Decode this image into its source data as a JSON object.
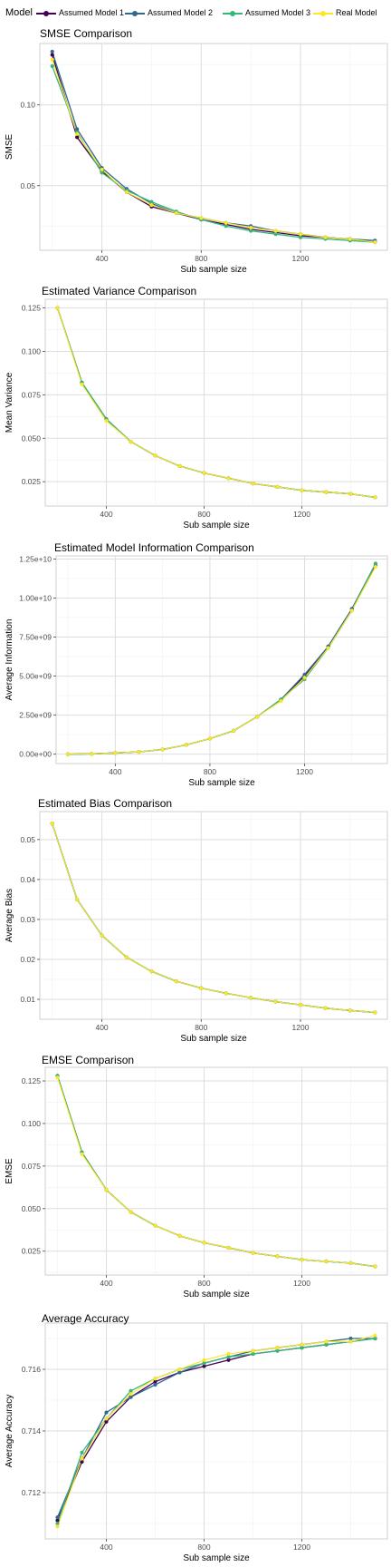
{
  "legend": {
    "title": "Model",
    "items": [
      {
        "label": "Assumed Model 1",
        "color": "#440154"
      },
      {
        "label": "Assumed Model 2",
        "color": "#31688e"
      },
      {
        "label": "Assumed Model 3",
        "color": "#35b779"
      },
      {
        "label": "Real Model",
        "color": "#fde725"
      }
    ]
  },
  "chart_data": [
    {
      "type": "line",
      "title": "SMSE Comparison",
      "xlabel": "Sub sample size",
      "ylabel": "SMSE",
      "x": [
        200,
        300,
        400,
        500,
        600,
        700,
        800,
        900,
        1000,
        1100,
        1200,
        1300,
        1400,
        1500
      ],
      "xticks": [
        400,
        800,
        1200
      ],
      "xtick_labels": [
        "400",
        "800",
        "1200"
      ],
      "xlim": [
        150,
        1550
      ],
      "yticks": [
        0.05,
        0.1
      ],
      "ytick_labels": [
        "0.05",
        "0.10"
      ],
      "ylim": [
        0.01,
        0.138
      ],
      "grid": true,
      "series": [
        {
          "name": "Assumed Model 1",
          "color": "#440154",
          "values": [
            0.131,
            0.08,
            0.059,
            0.046,
            0.037,
            0.033,
            0.029,
            0.026,
            0.023,
            0.021,
            0.019,
            0.018,
            0.017,
            0.015
          ]
        },
        {
          "name": "Assumed Model 2",
          "color": "#31688e",
          "values": [
            0.133,
            0.085,
            0.061,
            0.048,
            0.039,
            0.033,
            0.03,
            0.027,
            0.025,
            0.022,
            0.02,
            0.018,
            0.017,
            0.016
          ]
        },
        {
          "name": "Assumed Model 3",
          "color": "#35b779",
          "values": [
            0.124,
            0.083,
            0.058,
            0.047,
            0.04,
            0.034,
            0.029,
            0.025,
            0.022,
            0.02,
            0.018,
            0.017,
            0.016,
            0.015
          ]
        },
        {
          "name": "Real Model",
          "color": "#fde725",
          "values": [
            0.128,
            0.082,
            0.06,
            0.046,
            0.038,
            0.033,
            0.03,
            0.027,
            0.024,
            0.022,
            0.02,
            0.018,
            0.017,
            0.015
          ]
        }
      ]
    },
    {
      "type": "line",
      "title": "Estimated Variance Comparison",
      "xlabel": "Sub sample size",
      "ylabel": "Mean Variance",
      "x": [
        200,
        300,
        400,
        500,
        600,
        700,
        800,
        900,
        1000,
        1100,
        1200,
        1300,
        1400,
        1500
      ],
      "xticks": [
        400,
        800,
        1200
      ],
      "xtick_labels": [
        "400",
        "800",
        "1200"
      ],
      "xlim": [
        150,
        1550
      ],
      "yticks": [
        0.025,
        0.05,
        0.075,
        0.1,
        0.125
      ],
      "ytick_labels": [
        "0.025",
        "0.050",
        "0.075",
        "0.100",
        "0.125"
      ],
      "ylim": [
        0.011,
        0.13
      ],
      "grid": true,
      "series": [
        {
          "name": "Assumed Model 1",
          "color": "#440154",
          "values": [
            0.125,
            0.082,
            0.061,
            0.048,
            0.04,
            0.034,
            0.03,
            0.027,
            0.024,
            0.022,
            0.02,
            0.019,
            0.018,
            0.016
          ]
        },
        {
          "name": "Assumed Model 2",
          "color": "#31688e",
          "values": [
            0.125,
            0.082,
            0.061,
            0.048,
            0.04,
            0.034,
            0.03,
            0.027,
            0.024,
            0.022,
            0.02,
            0.019,
            0.018,
            0.016
          ]
        },
        {
          "name": "Assumed Model 3",
          "color": "#35b779",
          "values": [
            0.125,
            0.082,
            0.061,
            0.048,
            0.04,
            0.034,
            0.03,
            0.027,
            0.024,
            0.022,
            0.02,
            0.019,
            0.018,
            0.016
          ]
        },
        {
          "name": "Real Model",
          "color": "#fde725",
          "values": [
            0.125,
            0.081,
            0.06,
            0.048,
            0.04,
            0.034,
            0.03,
            0.027,
            0.024,
            0.022,
            0.02,
            0.019,
            0.018,
            0.016
          ]
        }
      ]
    },
    {
      "type": "line",
      "title": "Estimated Model Information Comparison",
      "xlabel": "Sub sample size",
      "ylabel": "Average Information",
      "x": [
        200,
        300,
        400,
        500,
        600,
        700,
        800,
        900,
        1000,
        1100,
        1200,
        1300,
        1400,
        1500
      ],
      "xticks": [
        400,
        800,
        1200
      ],
      "xtick_labels": [
        "400",
        "800",
        "1200"
      ],
      "xlim": [
        150,
        1550
      ],
      "yticks": [
        0,
        2500000000,
        5000000000,
        7500000000,
        10000000000,
        12500000000
      ],
      "ytick_labels": [
        "0.00e+00",
        "2.50e+09",
        "5.00e+09",
        "7.50e+09",
        "1.00e+10",
        "1.25e+10"
      ],
      "ylim": [
        -600000000,
        12700000000
      ],
      "grid": true,
      "series": [
        {
          "name": "Assumed Model 1",
          "color": "#440154",
          "values": [
            0,
            20000000,
            80000000,
            150000000,
            300000000,
            600000000,
            1000000000,
            1500000000,
            2400000000,
            3500000000,
            5000000000,
            6900000000,
            9300000000,
            12100000000
          ]
        },
        {
          "name": "Assumed Model 2",
          "color": "#31688e",
          "values": [
            0,
            20000000,
            80000000,
            150000000,
            300000000,
            600000000,
            1000000000,
            1500000000,
            2400000000,
            3500000000,
            5100000000,
            6900000000,
            9300000000,
            12200000000
          ]
        },
        {
          "name": "Assumed Model 3",
          "color": "#35b779",
          "values": [
            0,
            20000000,
            80000000,
            150000000,
            300000000,
            600000000,
            1000000000,
            1500000000,
            2400000000,
            3500000000,
            4800000000,
            6800000000,
            9200000000,
            12200000000
          ]
        },
        {
          "name": "Real Model",
          "color": "#fde725",
          "values": [
            0,
            20000000,
            80000000,
            150000000,
            300000000,
            600000000,
            1000000000,
            1500000000,
            2400000000,
            3400000000,
            4900000000,
            6800000000,
            9200000000,
            12000000000
          ]
        }
      ]
    },
    {
      "type": "line",
      "title": "Estimated Bias Comparison",
      "xlabel": "Sub sample size",
      "ylabel": "Average Bias",
      "x": [
        200,
        300,
        400,
        500,
        600,
        700,
        800,
        900,
        1000,
        1100,
        1200,
        1300,
        1400,
        1500
      ],
      "xticks": [
        400,
        800,
        1200
      ],
      "xtick_labels": [
        "400",
        "800",
        "1200"
      ],
      "xlim": [
        150,
        1550
      ],
      "yticks": [
        0.01,
        0.02,
        0.03,
        0.04,
        0.05
      ],
      "ytick_labels": [
        "0.01",
        "0.02",
        "0.03",
        "0.04",
        "0.05"
      ],
      "ylim": [
        0.005,
        0.057
      ],
      "grid": true,
      "series": [
        {
          "name": "Assumed Model 1",
          "color": "#440154",
          "values": [
            0.054,
            0.035,
            0.026,
            0.0205,
            0.017,
            0.0145,
            0.0128,
            0.0115,
            0.0104,
            0.0094,
            0.0086,
            0.0078,
            0.0072,
            0.0067
          ]
        },
        {
          "name": "Assumed Model 2",
          "color": "#31688e",
          "values": [
            0.054,
            0.035,
            0.026,
            0.0205,
            0.017,
            0.0145,
            0.0128,
            0.0115,
            0.0104,
            0.0094,
            0.0086,
            0.0078,
            0.0072,
            0.0067
          ]
        },
        {
          "name": "Assumed Model 3",
          "color": "#35b779",
          "values": [
            0.054,
            0.035,
            0.026,
            0.0205,
            0.017,
            0.0145,
            0.0128,
            0.0115,
            0.0104,
            0.0094,
            0.0086,
            0.0078,
            0.0072,
            0.0067
          ]
        },
        {
          "name": "Real Model",
          "color": "#fde725",
          "values": [
            0.054,
            0.035,
            0.026,
            0.0205,
            0.017,
            0.0145,
            0.0128,
            0.0115,
            0.0104,
            0.0094,
            0.0086,
            0.0078,
            0.0072,
            0.0067
          ]
        }
      ]
    },
    {
      "type": "line",
      "title": "EMSE Comparison",
      "xlabel": "Sub sample size",
      "ylabel": "EMSE",
      "x": [
        200,
        300,
        400,
        500,
        600,
        700,
        800,
        900,
        1000,
        1100,
        1200,
        1300,
        1400,
        1500
      ],
      "xticks": [
        400,
        800,
        1200
      ],
      "xtick_labels": [
        "400",
        "800",
        "1200"
      ],
      "xlim": [
        150,
        1550
      ],
      "yticks": [
        0.025,
        0.05,
        0.075,
        0.1,
        0.125
      ],
      "ytick_labels": [
        "0.025",
        "0.050",
        "0.075",
        "0.100",
        "0.125"
      ],
      "ylim": [
        0.011,
        0.133
      ],
      "grid": true,
      "series": [
        {
          "name": "Assumed Model 1",
          "color": "#440154",
          "values": [
            0.128,
            0.083,
            0.061,
            0.048,
            0.04,
            0.034,
            0.03,
            0.027,
            0.024,
            0.022,
            0.02,
            0.019,
            0.018,
            0.016
          ]
        },
        {
          "name": "Assumed Model 2",
          "color": "#31688e",
          "values": [
            0.128,
            0.083,
            0.061,
            0.048,
            0.04,
            0.034,
            0.03,
            0.027,
            0.024,
            0.022,
            0.02,
            0.019,
            0.018,
            0.016
          ]
        },
        {
          "name": "Assumed Model 3",
          "color": "#35b779",
          "values": [
            0.128,
            0.083,
            0.061,
            0.048,
            0.04,
            0.034,
            0.03,
            0.027,
            0.024,
            0.022,
            0.02,
            0.019,
            0.018,
            0.016
          ]
        },
        {
          "name": "Real Model",
          "color": "#fde725",
          "values": [
            0.127,
            0.082,
            0.061,
            0.048,
            0.04,
            0.034,
            0.03,
            0.027,
            0.024,
            0.022,
            0.02,
            0.019,
            0.018,
            0.016
          ]
        }
      ]
    },
    {
      "type": "line",
      "title": "Average Accuracy",
      "xlabel": "Sub sample size",
      "ylabel": "Average Accuracy",
      "x": [
        200,
        300,
        400,
        500,
        600,
        700,
        800,
        900,
        1000,
        1100,
        1200,
        1300,
        1400,
        1500
      ],
      "xticks": [
        400,
        800,
        1200
      ],
      "xtick_labels": [
        "400",
        "800",
        "1200"
      ],
      "xlim": [
        150,
        1550
      ],
      "yticks": [
        0.712,
        0.714,
        0.716
      ],
      "ytick_labels": [
        "0.712",
        "0.714",
        "0.716"
      ],
      "ylim": [
        0.7105,
        0.7175
      ],
      "grid": true,
      "series": [
        {
          "name": "Assumed Model 1",
          "color": "#440154",
          "values": [
            0.7111,
            0.713,
            0.7143,
            0.7151,
            0.7156,
            0.7159,
            0.7161,
            0.7163,
            0.7165,
            0.7166,
            0.7167,
            0.7168,
            0.7169,
            0.717
          ]
        },
        {
          "name": "Assumed Model 2",
          "color": "#31688e",
          "values": [
            0.7112,
            0.7131,
            0.7146,
            0.7151,
            0.7155,
            0.7159,
            0.7162,
            0.7164,
            0.7166,
            0.7167,
            0.7168,
            0.7169,
            0.717,
            0.717
          ]
        },
        {
          "name": "Assumed Model 3",
          "color": "#35b779",
          "values": [
            0.711,
            0.7133,
            0.7144,
            0.7153,
            0.7157,
            0.716,
            0.7162,
            0.7164,
            0.7165,
            0.7166,
            0.7167,
            0.7168,
            0.7169,
            0.717
          ]
        },
        {
          "name": "Real Model",
          "color": "#fde725",
          "values": [
            0.7109,
            0.7131,
            0.7144,
            0.7152,
            0.7157,
            0.716,
            0.7163,
            0.7165,
            0.7166,
            0.7167,
            0.7168,
            0.7169,
            0.7169,
            0.7171
          ]
        }
      ]
    }
  ]
}
